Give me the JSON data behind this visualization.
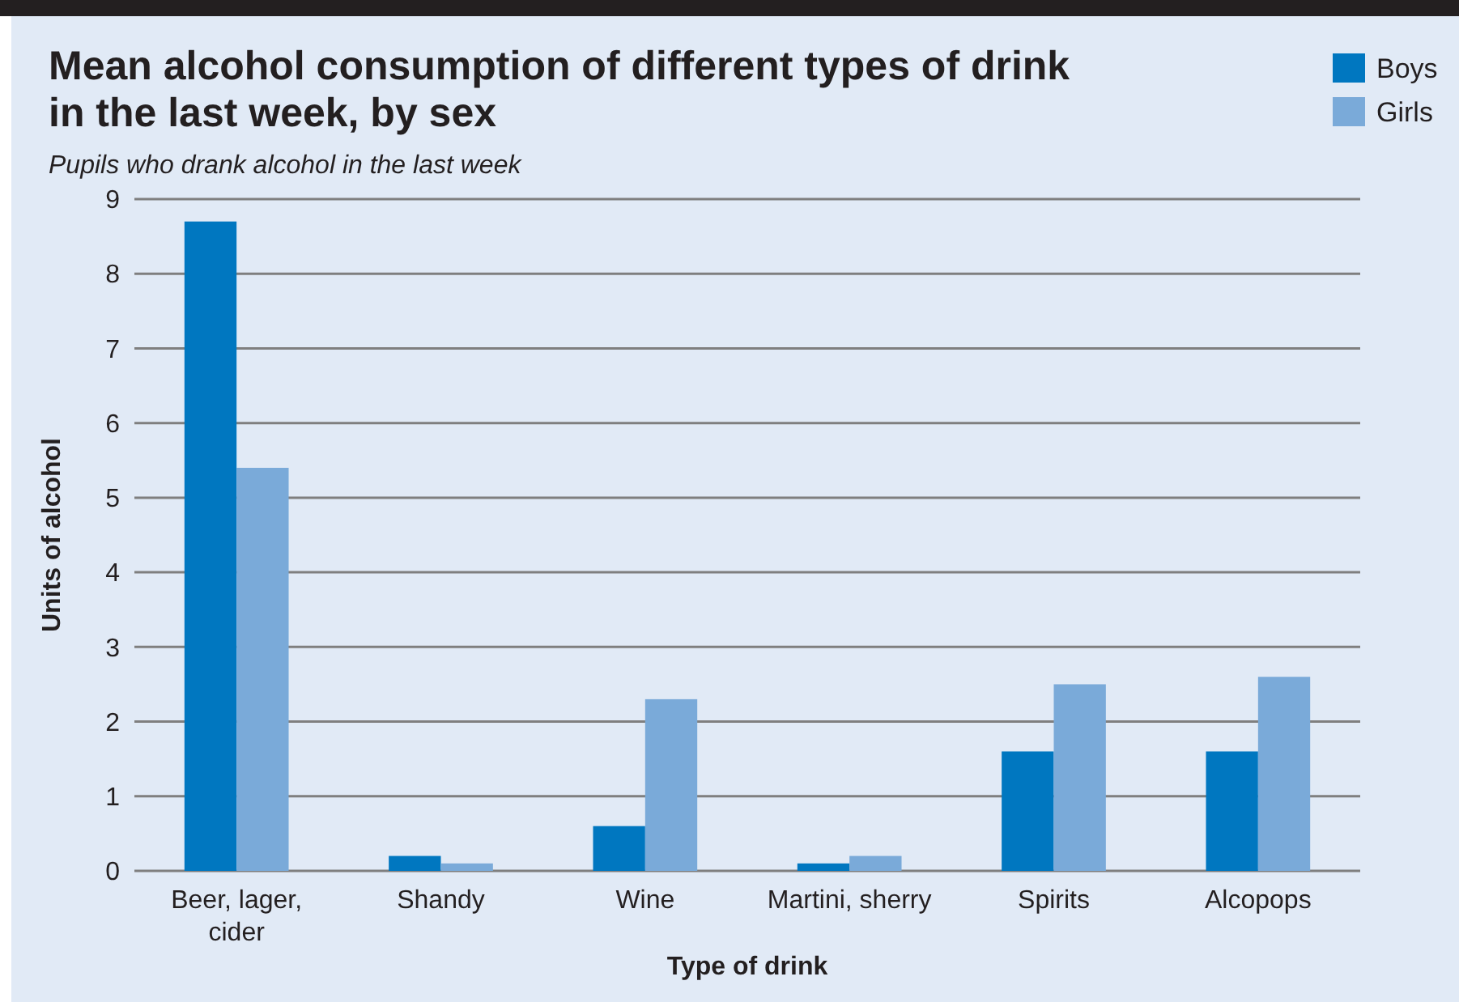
{
  "chart_data": {
    "type": "bar",
    "title": "Mean alcohol consumption of different types of drink in the last week, by sex",
    "subtitle": "Pupils who drank alcohol in the last week",
    "xlabel": "Type of drink",
    "ylabel": "Units of alcohol",
    "categories": [
      "Beer, lager, cider",
      "Shandy",
      "Wine",
      "Martini, sherry",
      "Spirits",
      "Alcopops"
    ],
    "series": [
      {
        "name": "Boys",
        "color": "#0077c0",
        "values": [
          8.7,
          0.2,
          0.6,
          0.1,
          1.6,
          1.6
        ]
      },
      {
        "name": "Girls",
        "color": "#7aaad9",
        "values": [
          5.4,
          0.1,
          2.3,
          0.2,
          2.5,
          2.6
        ]
      }
    ],
    "ylim": [
      0,
      9
    ],
    "yticks": [
      0,
      1,
      2,
      3,
      4,
      5,
      6,
      7,
      8,
      9
    ],
    "grid": "y",
    "legend": "top right"
  }
}
